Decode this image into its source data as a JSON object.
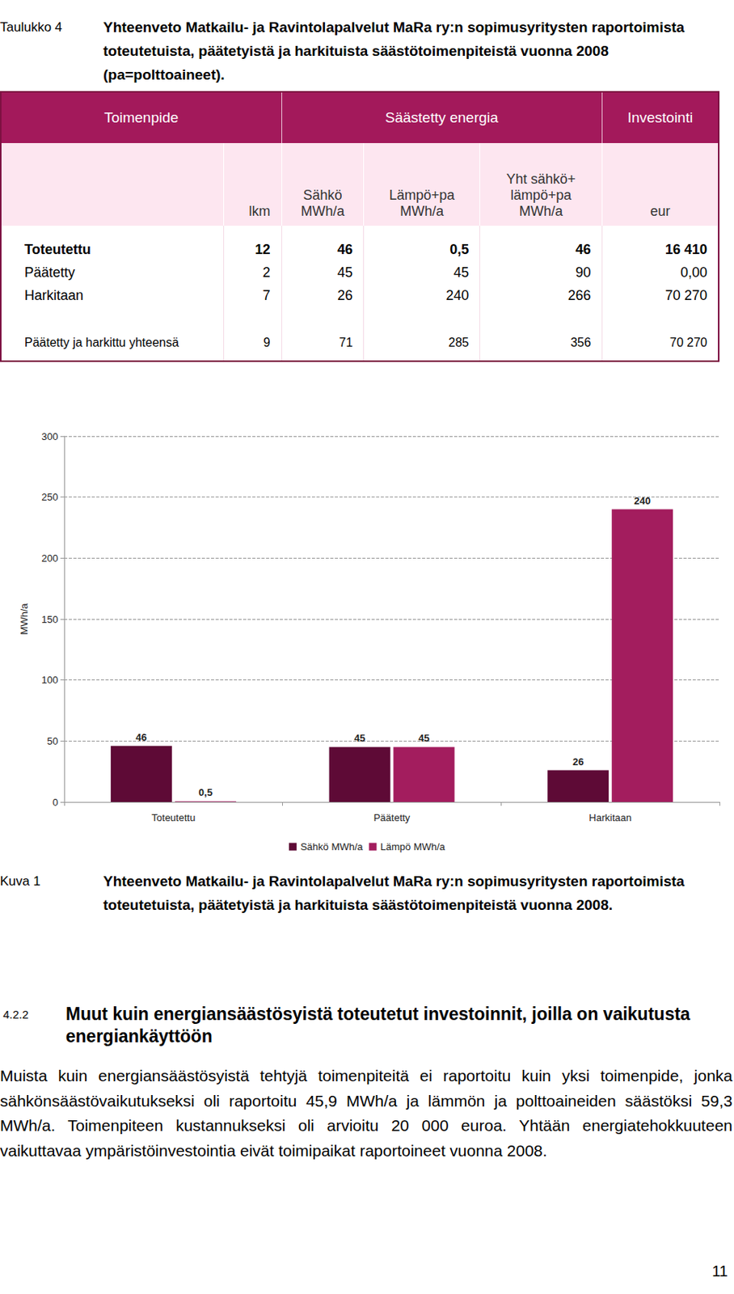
{
  "table_caption": {
    "label": "Taulukko 4",
    "text": "Yhteenveto Matkailu- ja Ravintolapalvelut MaRa ry:n sopimusyritysten raportoimista toteutetuista, päätetyistä ja harkituista säästötoimenpiteistä vuonna 2008 (pa=polttoaineet)."
  },
  "table": {
    "header": [
      "Toimenpide",
      "Säästetty energia",
      "Investointi"
    ],
    "subheader": [
      "lkm",
      "Sähkö\nMWh/a",
      "Lämpö+pa\nMWh/a",
      "Yht sähkö+\nlämpö+pa\nMWh/a",
      "eur"
    ],
    "rows": [
      [
        "Toteutettu",
        "12",
        "46",
        "0,5",
        "46",
        "16 410"
      ],
      [
        "Päätetty",
        "2",
        "45",
        "45",
        "90",
        "0,00"
      ],
      [
        "Harkitaan",
        "7",
        "26",
        "240",
        "266",
        "70 270"
      ],
      [
        "Päätetty ja harkittu yhteensä",
        "9",
        "71",
        "285",
        "356",
        "70 270"
      ]
    ]
  },
  "chart_data": {
    "type": "bar",
    "categories": [
      "Toteutettu",
      "Päätetty",
      "Harkitaan"
    ],
    "series": [
      {
        "name": "Sähkö MWh/a",
        "color": "#5e0a36",
        "values": [
          46,
          45,
          26
        ]
      },
      {
        "name": "Lämpö MWh/a",
        "color": "#a31d5e",
        "values": [
          0.5,
          45,
          240
        ],
        "value_labels": [
          "0,5",
          "45",
          "240"
        ]
      }
    ],
    "ylabel": "MWh/a",
    "ylim": [
      0,
      300
    ],
    "yticks": [
      0,
      50,
      100,
      150,
      200,
      250,
      300
    ],
    "grid": true,
    "legend": "bottom",
    "data_labels": true
  },
  "figure_caption": {
    "label": "Kuva 1",
    "text": "Yhteenveto Matkailu- ja Ravintolapalvelut MaRa ry:n sopimusyritysten raportoimista toteutetuista, päätetyistä ja harkituista säästötoimenpiteistä vuonna 2008."
  },
  "section": {
    "number": "4.2.2",
    "title": "Muut kuin energiansäästösyistä toteutetut investoinnit, joilla on vaikutusta energiankäyttöön",
    "text": "Muista kuin energiansäästösyistä tehtyjä toimenpiteitä ei raportoitu kuin yksi toimenpide, jonka sähkönsäästövaikutukseksi oli raportoitu 45,9 MWh/a ja lämmön ja polttoaineiden säästöksi 59,3 MWh/a. Toimenpiteen kustannukseksi oli arvioitu 20 000 euroa. Yhtään energiatehokkuuteen vaikuttavaa ympäristöinvestointia eivät toimipaikat raportoineet vuonna 2008."
  },
  "page_number": "11"
}
